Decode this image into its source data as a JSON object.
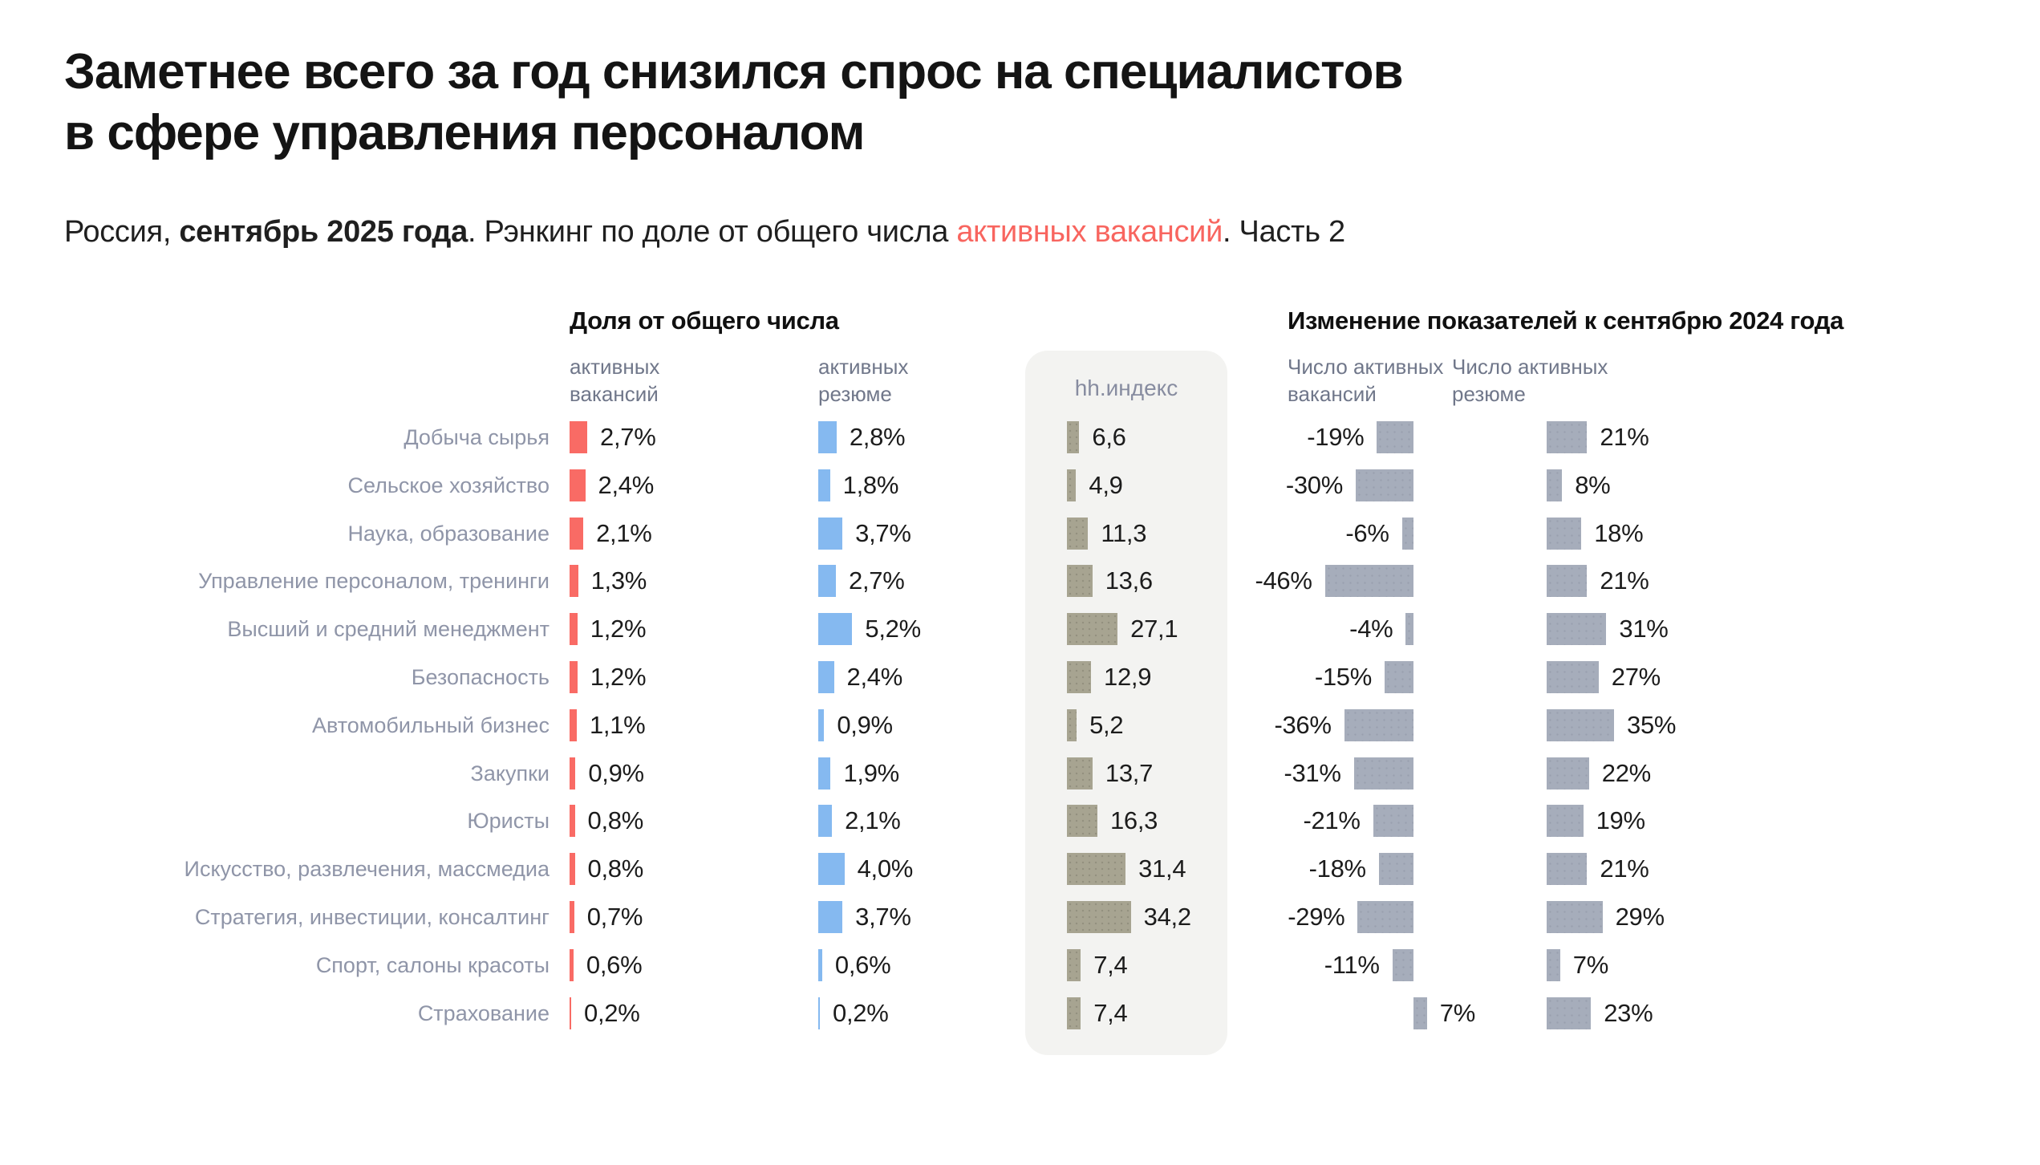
{
  "title": {
    "line1": "Заметнее всего за год снизился спрос на специалистов",
    "line2": "в сфере управления персоналом"
  },
  "subtitle": {
    "part1": "Россия, ",
    "part2_bold": "сентябрь 2025 года",
    "part3": ". Рэнкинг по доле от общего числа ",
    "part4_accent": "активных вакансий",
    "part5": ". Часть 2"
  },
  "sections": {
    "share": {
      "header": "Доля от общего числа",
      "col_vacancies": "активных\nвакансий",
      "col_resumes": "активных\nрезюме"
    },
    "hh_index": {
      "header": "hh.индекс"
    },
    "change": {
      "header": "Изменение показателей к сентябрю 2024 года",
      "col_vacancies": "Число активных\nвакансий",
      "col_resumes": "Число активных\nрезюме"
    }
  },
  "colors": {
    "accent_red": "#f8655f",
    "vacancy_share_bar": "#f96b65",
    "resume_share_bar": "#85b9f0",
    "hh_index_bar": "#a7a491",
    "change_bar": "#a6adbb",
    "hh_panel_bg": "#f3f3f1",
    "category_label": "#8f95a8"
  },
  "chart_data": {
    "type": "bar",
    "orientation": "horizontal",
    "categories": [
      "Добыча сырья",
      "Сельское хозяйство",
      "Наука, образование",
      "Управление персоналом, тренинги",
      "Высший и средний менеджмент",
      "Безопасность",
      "Автомобильный бизнес",
      "Закупки",
      "Юристы",
      "Искусство, развлечения, массмедиа",
      "Стратегия, инвестиции, консалтинг",
      "Спорт, салоны красоты",
      "Страхование"
    ],
    "series": [
      {
        "name": "Доля от общего числа активных вакансий, %",
        "values": [
          2.7,
          2.4,
          2.1,
          1.3,
          1.2,
          1.2,
          1.1,
          0.9,
          0.8,
          0.8,
          0.7,
          0.6,
          0.2
        ],
        "labels": [
          "2,7%",
          "2,4%",
          "2,1%",
          "1,3%",
          "1,2%",
          "1,2%",
          "1,1%",
          "0,9%",
          "0,8%",
          "0,8%",
          "0,7%",
          "0,6%",
          "0,2%"
        ]
      },
      {
        "name": "Доля от общего числа активных резюме, %",
        "values": [
          2.8,
          1.8,
          3.7,
          2.7,
          5.2,
          2.4,
          0.9,
          1.9,
          2.1,
          4.0,
          3.7,
          0.6,
          0.2
        ],
        "labels": [
          "2,8%",
          "1,8%",
          "3,7%",
          "2,7%",
          "5,2%",
          "2,4%",
          "0,9%",
          "1,9%",
          "2,1%",
          "4,0%",
          "3,7%",
          "0,6%",
          "0,2%"
        ]
      },
      {
        "name": "hh.индекс",
        "values": [
          6.6,
          4.9,
          11.3,
          13.6,
          27.1,
          12.9,
          5.2,
          13.7,
          16.3,
          31.4,
          34.2,
          7.4,
          7.4
        ],
        "labels": [
          "6,6",
          "4,9",
          "11,3",
          "13,6",
          "27,1",
          "12,9",
          "5,2",
          "13,7",
          "16,3",
          "31,4",
          "34,2",
          "7,4",
          "7,4"
        ]
      },
      {
        "name": "Изменение числа активных вакансий к сентябрю 2024 года, %",
        "values": [
          -19,
          -30,
          -6,
          -46,
          -4,
          -15,
          -36,
          -31,
          -21,
          -18,
          -29,
          -11,
          7
        ],
        "labels": [
          "-19%",
          "-30%",
          "-6%",
          "-46%",
          "-4%",
          "-15%",
          "-36%",
          "-31%",
          "-21%",
          "-18%",
          "-29%",
          "-11%",
          "7%"
        ]
      },
      {
        "name": "Изменение числа активных резюме к сентябрю 2024 года, %",
        "values": [
          21,
          8,
          18,
          21,
          31,
          27,
          35,
          22,
          19,
          21,
          29,
          7,
          23
        ],
        "labels": [
          "21%",
          "8%",
          "18%",
          "21%",
          "31%",
          "27%",
          "35%",
          "22%",
          "19%",
          "21%",
          "29%",
          "7%",
          "23%"
        ]
      }
    ]
  }
}
